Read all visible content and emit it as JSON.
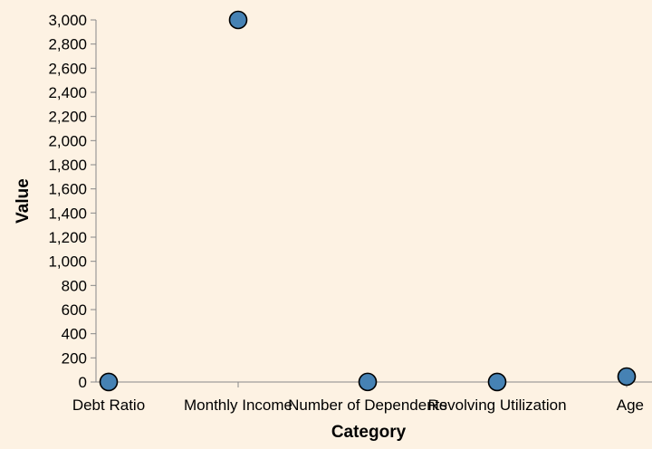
{
  "chart_data": {
    "type": "scatter",
    "title": "",
    "xlabel": "Category",
    "ylabel": "Value",
    "categories": [
      "Debt Ratio",
      "Monthly Income",
      "Number of Dependents",
      "Revolving Utilization",
      "Age"
    ],
    "values": [
      0.5,
      3000,
      1,
      0.5,
      45
    ],
    "ylim": [
      0,
      3000
    ],
    "yticks": [
      0,
      200,
      400,
      600,
      800,
      1000,
      1200,
      1400,
      1600,
      1800,
      2000,
      2200,
      2400,
      2600,
      2800,
      3000
    ],
    "ytick_labels": [
      "0",
      "200",
      "400",
      "600",
      "800",
      "1,000",
      "1,200",
      "1,400",
      "1,600",
      "1,800",
      "2,000",
      "2,200",
      "2,400",
      "2,600",
      "2,800",
      "3,000"
    ],
    "grid": false,
    "point_color": "#4682b4",
    "point_stroke": "#000000",
    "background": "#fdf2e3"
  }
}
